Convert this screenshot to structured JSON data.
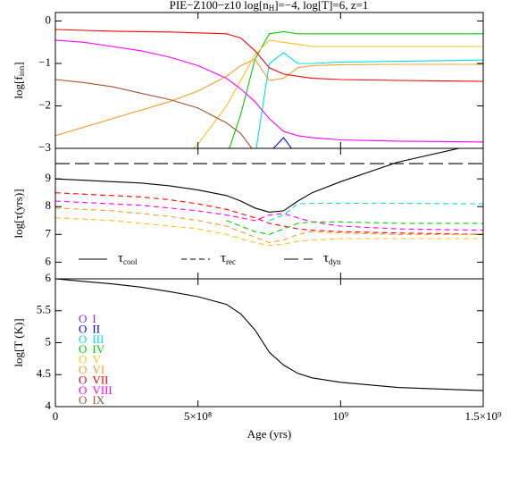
{
  "title": [
    "PIE−Z100−z10 log[n",
    "H",
    "]=−4, log[T]=6, z=1"
  ],
  "chart_data": [
    {
      "type": "line",
      "ylabel": [
        "log[f",
        "ion",
        "]"
      ],
      "xlim": [
        0,
        1500000000
      ],
      "ylim": [
        -3,
        0.2
      ],
      "yticks": [
        {
          "value": -3,
          "label": "−3"
        },
        {
          "value": -2,
          "label": "−2"
        },
        {
          "value": -1,
          "label": "−1"
        },
        0
      ],
      "x": [
        0,
        100000000,
        200000000,
        300000000,
        400000000,
        500000000,
        600000000,
        650000000,
        700000000,
        750000000,
        800000000,
        850000000,
        900000000,
        1000000000,
        1200000000,
        1500000000
      ],
      "series": [
        {
          "name": "I",
          "color": "#a020f0",
          "values": [
            null,
            null,
            null,
            null,
            null,
            null,
            null,
            null,
            null,
            null,
            null,
            null,
            null,
            null,
            null,
            null
          ]
        },
        {
          "name": "II",
          "color": "#0000ff",
          "values": [
            null,
            null,
            null,
            null,
            null,
            null,
            null,
            null,
            null,
            -3.1,
            -2.75,
            -3.2,
            null,
            null,
            null,
            null
          ]
        },
        {
          "name": "III",
          "color": "#00e0e0",
          "values": [
            null,
            null,
            null,
            null,
            null,
            null,
            null,
            null,
            -3.2,
            -1.0,
            -0.75,
            -1.0,
            -1.0,
            -0.97,
            -0.95,
            -0.92
          ]
        },
        {
          "name": "IV",
          "color": "#00d000",
          "values": [
            null,
            null,
            null,
            null,
            null,
            null,
            -3.2,
            -2.2,
            -0.9,
            -0.3,
            -0.25,
            -0.3,
            -0.3,
            -0.3,
            -0.3,
            -0.3
          ]
        },
        {
          "name": "V",
          "color": "#ffc020",
          "values": [
            null,
            null,
            null,
            null,
            -3.5,
            -2.9,
            -2.0,
            -1.4,
            -0.8,
            -0.45,
            -0.5,
            -0.55,
            -0.6,
            -0.6,
            -0.6,
            -0.6
          ]
        },
        {
          "name": "VI",
          "color": "#f0a030",
          "values": [
            -2.7,
            -2.5,
            -2.3,
            -2.1,
            -1.9,
            -1.65,
            -1.3,
            -1.05,
            -0.9,
            -1.4,
            -1.35,
            -1.1,
            -1.05,
            -1.03,
            -1.02,
            -1.02
          ]
        },
        {
          "name": "VII",
          "color": "#ff0000",
          "values": [
            -0.2,
            -0.22,
            -0.24,
            -0.25,
            -0.26,
            -0.28,
            -0.3,
            -0.4,
            -0.7,
            -1.1,
            -1.25,
            -1.3,
            -1.35,
            -1.38,
            -1.4,
            -1.42
          ]
        },
        {
          "name": "VIII",
          "color": "#ff00ff",
          "values": [
            -0.45,
            -0.5,
            -0.6,
            -0.7,
            -0.85,
            -1.05,
            -1.35,
            -1.6,
            -1.9,
            -2.3,
            -2.6,
            -2.7,
            -2.75,
            -2.8,
            -2.83,
            -2.85
          ]
        },
        {
          "name": "IX",
          "color": "#a0522d",
          "values": [
            -1.38,
            -1.45,
            -1.55,
            -1.7,
            -1.85,
            -2.05,
            -2.4,
            -2.65,
            -3.1,
            null,
            null,
            null,
            null,
            null,
            null,
            null
          ]
        }
      ]
    },
    {
      "type": "line",
      "ylabel": [
        "log[τ(yrs)]"
      ],
      "xlim": [
        0,
        1500000000
      ],
      "ylim": [
        5.4,
        10.1
      ],
      "yticks": [
        6,
        7,
        8,
        9
      ],
      "x": [
        0,
        100000000,
        200000000,
        300000000,
        400000000,
        500000000,
        600000000,
        650000000,
        700000000,
        750000000,
        800000000,
        850000000,
        900000000,
        1000000000,
        1200000000,
        1500000000
      ],
      "legend": [
        {
          "symbol": "τ",
          "sub": "cool",
          "dash": "solid"
        },
        {
          "symbol": "τ",
          "sub": "rec",
          "dash": "dashed"
        },
        {
          "symbol": "τ",
          "sub": "dyn",
          "dash": "longdash"
        }
      ],
      "series": [
        {
          "color": "#000000",
          "dash": "solid",
          "values": [
            9.0,
            8.95,
            8.9,
            8.85,
            8.75,
            8.6,
            8.4,
            8.2,
            7.95,
            7.8,
            7.85,
            8.2,
            8.5,
            8.9,
            9.6,
            10.3
          ]
        },
        {
          "color": "#000000",
          "dash": "longdash",
          "values": [
            9.55,
            9.55,
            9.55,
            9.55,
            9.55,
            9.55,
            9.55,
            9.55,
            9.55,
            9.55,
            9.55,
            9.55,
            9.55,
            9.55,
            9.55,
            9.55
          ]
        },
        {
          "color": "#ff0000",
          "dash": "dashed",
          "values": [
            8.5,
            8.45,
            8.4,
            8.35,
            8.25,
            8.1,
            7.9,
            7.75,
            7.6,
            7.4,
            7.3,
            7.2,
            7.15,
            7.1,
            7.05,
            7.0
          ]
        },
        {
          "color": "#ff00ff",
          "dash": "dashed",
          "values": [
            8.2,
            8.15,
            8.1,
            8.05,
            7.95,
            7.85,
            7.7,
            7.6,
            7.5,
            7.7,
            7.75,
            7.6,
            7.45,
            7.3,
            7.2,
            7.15
          ]
        },
        {
          "color": "#00e0e0",
          "dash": "dashed",
          "values": [
            null,
            null,
            null,
            null,
            null,
            null,
            null,
            null,
            null,
            7.5,
            7.7,
            8.1,
            8.12,
            8.12,
            8.12,
            8.1
          ]
        },
        {
          "color": "#00d000",
          "dash": "dashed",
          "values": [
            null,
            null,
            null,
            null,
            null,
            null,
            7.5,
            7.3,
            7.1,
            7.0,
            7.2,
            7.4,
            7.45,
            7.45,
            7.4,
            7.4
          ]
        },
        {
          "color": "#f0a030",
          "dash": "dashed",
          "values": [
            7.95,
            7.9,
            7.85,
            7.75,
            7.65,
            7.5,
            7.3,
            7.1,
            6.9,
            6.7,
            6.8,
            7.0,
            7.1,
            7.05,
            7.0,
            7.0
          ]
        },
        {
          "color": "#ffc020",
          "dash": "dashed",
          "values": [
            7.6,
            7.55,
            7.5,
            7.4,
            7.3,
            7.2,
            7.0,
            6.85,
            6.7,
            6.6,
            6.65,
            6.75,
            6.8,
            6.85,
            6.85,
            6.85
          ]
        }
      ]
    },
    {
      "type": "line",
      "ylabel": [
        "log[T (K)]"
      ],
      "xlabel": "Age (yrs)",
      "legend_prefix": "O",
      "xlim": [
        0,
        1500000000
      ],
      "xticks": [
        0,
        {
          "value": 500000000,
          "label": "5×10⁸"
        },
        {
          "value": 1000000000,
          "label": "10⁹"
        },
        {
          "value": 1500000000,
          "label": "1.5×10⁹"
        }
      ],
      "ylim": [
        4,
        6
      ],
      "yticks": [
        4,
        4.5,
        5,
        5.5,
        6
      ],
      "x": [
        0,
        100000000,
        200000000,
        300000000,
        400000000,
        500000000,
        600000000,
        650000000,
        700000000,
        750000000,
        800000000,
        850000000,
        900000000,
        1000000000,
        1200000000,
        1500000000
      ],
      "series": [
        {
          "color": "#000000",
          "dash": "solid",
          "values": [
            6.0,
            5.96,
            5.92,
            5.87,
            5.8,
            5.72,
            5.6,
            5.45,
            5.2,
            4.85,
            4.65,
            4.52,
            4.45,
            4.38,
            4.3,
            4.25
          ]
        }
      ]
    }
  ]
}
